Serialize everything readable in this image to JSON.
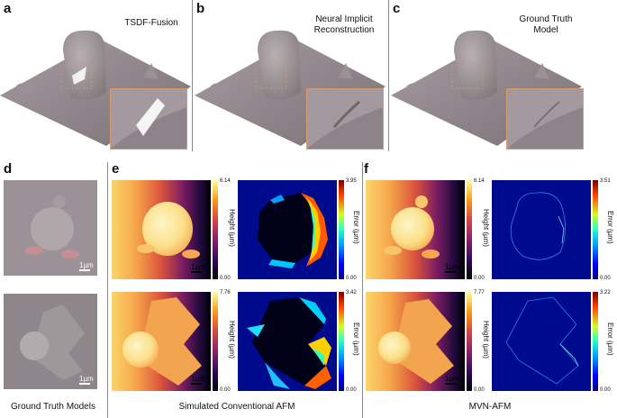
{
  "panels": {
    "a": {
      "label": "a",
      "title": "TSDF-Fusion"
    },
    "b": {
      "label": "b",
      "title_line1": "Neural Implicit",
      "title_line2": "Reconstruction"
    },
    "c": {
      "label": "c",
      "title_line1": "Ground Truth",
      "title_line2": "Model"
    },
    "d": {
      "label": "d"
    },
    "e": {
      "label": "e"
    },
    "f": {
      "label": "f"
    }
  },
  "colorbars": {
    "e_row1_height": {
      "max": "6.14",
      "min": "0.00",
      "title": "Height (µm)"
    },
    "e_row1_error": {
      "max": "3.95",
      "min": "0.00",
      "title": "Error (µm)"
    },
    "e_row2_height": {
      "max": "7.76",
      "min": "0.00",
      "title": "Height (µm)"
    },
    "e_row2_error": {
      "max": "3.42",
      "min": "0.00",
      "title": "Error (µm)"
    },
    "f_row1_height": {
      "max": "6.14",
      "min": "0.00",
      "title": "Height (µm)"
    },
    "f_row1_error": {
      "max": "3.51",
      "min": "0.00",
      "title": "Error (µm)"
    },
    "f_row2_height": {
      "max": "7.77",
      "min": "0.00",
      "title": "Height (µm)"
    },
    "f_row2_error": {
      "max": "3.22",
      "min": "0.00",
      "title": "Error (µm)"
    }
  },
  "scalebar": {
    "label": "1µm"
  },
  "captions": {
    "d": "Ground Truth Models",
    "e": "Simulated Conventional AFM",
    "f": "MVN-AFM"
  },
  "colors": {
    "surface": "#8e8489",
    "inset_border": "#d79a6a",
    "divider": "#8a8a8a"
  }
}
